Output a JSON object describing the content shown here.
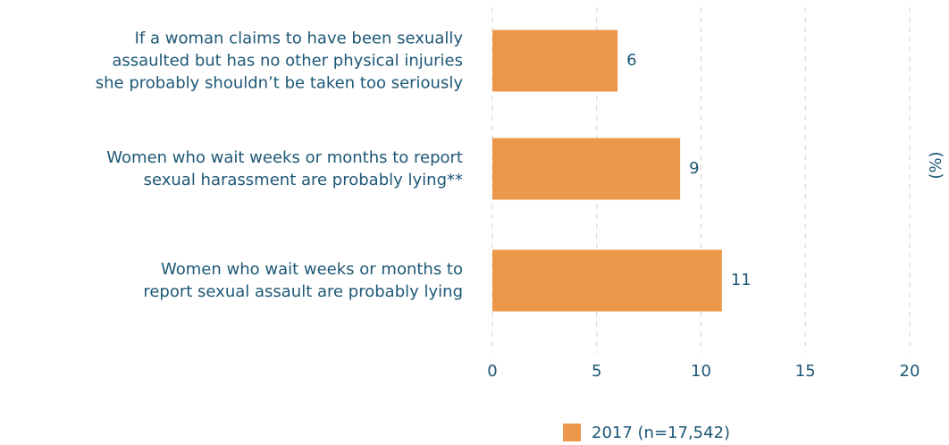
{
  "chart_data": {
    "type": "barh",
    "categories": [
      "If a woman claims to have been sexually\nassaulted but has no other physical injuries\nshe probably shouldn’t be taken too seriously",
      "Women who wait weeks or months to report\nsexual harassment are probably lying**",
      "Women who wait weeks or months to\nreport sexual assault are probably lying"
    ],
    "series": [
      {
        "name": "2017 (n=17,542)",
        "color": "#ec984b",
        "values": [
          6,
          9,
          11
        ]
      }
    ],
    "xlabel": "(%)",
    "xlim": [
      0,
      20
    ],
    "xticks": [
      0,
      5,
      10,
      15,
      20
    ],
    "grid": true,
    "legend": "bottom"
  }
}
